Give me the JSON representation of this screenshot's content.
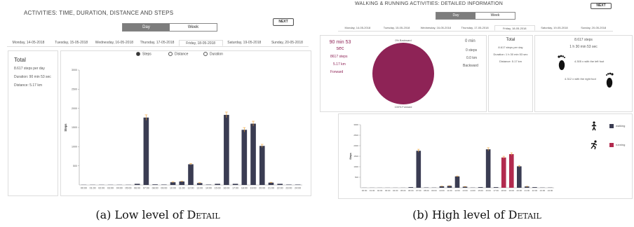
{
  "panel_a": {
    "title": "ACTIVITIES: TIME, DURATION, DISTANCE AND STEPS",
    "next_label": "NEXT",
    "view_toggle": {
      "day": "Day",
      "week": "Week",
      "active": "day"
    },
    "days": [
      "Monday, 14-05-2018",
      "Tuesday, 15-05-2018",
      "Wednesday, 16-05-2018",
      "Thursday, 17-05-2018",
      "Friday, 18-05-2018",
      "Saturday, 19-05-2018",
      "Sunday, 20-05-2018"
    ],
    "active_day_index": 4,
    "summary": {
      "title": "Total",
      "steps": "8.617 steps per day",
      "duration": "Duration: 90 min 53 sec",
      "distance": "Distance: 5.17 km"
    },
    "metric_options": [
      "Steps",
      "Distance",
      "Duration"
    ],
    "metric_selected": "Steps",
    "chart_data": {
      "type": "bar",
      "ylabel": "Steps",
      "ylim": [
        0,
        3000
      ],
      "yticks": [
        500,
        1000,
        1500,
        2000,
        2500,
        3000
      ],
      "categories": [
        "00:00",
        "01:00",
        "02:00",
        "03:00",
        "04:00",
        "05:00",
        "06:00",
        "07:00",
        "08:00",
        "09:00",
        "10:00",
        "11:00",
        "12:00",
        "13:00",
        "14:00",
        "15:00",
        "16:00",
        "17:00",
        "18:00",
        "19:00",
        "20:00",
        "21:00",
        "22:00",
        "23:00",
        "24:00"
      ],
      "values": [
        5,
        5,
        5,
        5,
        5,
        5,
        30,
        1760,
        15,
        10,
        70,
        90,
        540,
        50,
        10,
        30,
        1830,
        30,
        1440,
        1600,
        1020,
        60,
        30,
        10,
        10
      ],
      "color": "#3a3c52",
      "error_color": "#f0a030"
    }
  },
  "panel_b": {
    "title": "WALKING & RUNNING ACTIVITIES: DETAILED INFORMATION",
    "next_label": "NEXT",
    "view_toggle": {
      "day": "Day",
      "week": "Week",
      "active": "day"
    },
    "days": [
      "Monday, 14-05-2018",
      "Tuesday, 15-05-2018",
      "Wednesday, 16-05-2018",
      "Thursday, 17-05-2018",
      "Friday, 18-05-2018",
      "Saturday, 19-05-2018",
      "Sunday, 20-05-2018"
    ],
    "active_day_index": 4,
    "forward": {
      "time": "90 min 53 sec",
      "steps": "8617 steps",
      "distance": "5.17 km",
      "label": "Forward"
    },
    "backward": {
      "time": "0 min",
      "steps": "0 steps",
      "distance": "0.0 km",
      "label": "Backward"
    },
    "pie": {
      "top_label": "0% Backward",
      "bottom_label": "100% Forward",
      "color": "#8e2356",
      "backward_pct": 0,
      "forward_pct": 100
    },
    "total": {
      "title": "Total",
      "steps": "8.617 steps per day",
      "duration": "Duration: 1 h 30 min 53 sec",
      "distance": "Distance: 5.17 km"
    },
    "feet": {
      "steps": "8.617 steps",
      "time": "1 h 30 min 53 sec",
      "left": "4.305 x with the left foot",
      "right": "4.312 x with the right foot"
    },
    "legend": {
      "walking": "walking",
      "running": "running",
      "walking_color": "#3a3c52",
      "running_color": "#b22a4e"
    },
    "chart_data": {
      "type": "bar",
      "ylabel": "Steps",
      "ylim": [
        0,
        3000
      ],
      "yticks": [
        500,
        1000,
        1500,
        2000,
        2500,
        3000
      ],
      "categories": [
        "00:00",
        "01:00",
        "02:00",
        "03:00",
        "04:00",
        "05:00",
        "06:00",
        "07:00",
        "08:00",
        "09:00",
        "10:00",
        "11:00",
        "12:00",
        "13:00",
        "14:00",
        "15:00",
        "16:00",
        "17:00",
        "18:00",
        "19:00",
        "20:00",
        "21:00",
        "22:00",
        "23:00",
        "24:00"
      ],
      "values": [
        5,
        5,
        5,
        5,
        5,
        5,
        30,
        1760,
        15,
        10,
        70,
        90,
        540,
        50,
        10,
        30,
        1830,
        30,
        1440,
        1600,
        1020,
        60,
        30,
        10,
        10
      ],
      "series_type": [
        "walking",
        "walking",
        "walking",
        "walking",
        "walking",
        "walking",
        "walking",
        "walking",
        "walking",
        "walking",
        "walking",
        "walking",
        "walking",
        "walking",
        "walking",
        "walking",
        "walking",
        "walking",
        "running",
        "running",
        "walking",
        "walking",
        "walking",
        "walking",
        "walking"
      ]
    }
  },
  "captions": {
    "a_prefix": "(a) Low level of ",
    "a_word": "Detail",
    "b_prefix": "(b) High level of ",
    "b_word": "Detail"
  }
}
